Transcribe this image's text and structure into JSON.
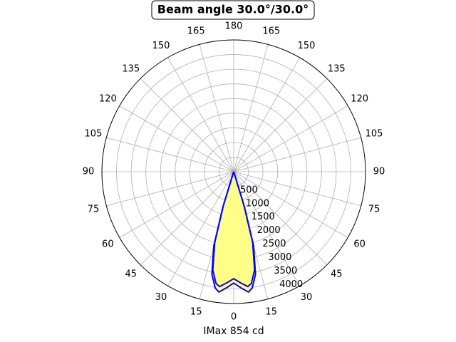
{
  "chart_data": {
    "type": "polar",
    "title": "Beam angle 30.0°/30.0°",
    "xlabel": "IMax 854 cd",
    "rlim": [
      0,
      4500
    ],
    "rticks": [
      500,
      1000,
      1500,
      2000,
      2500,
      3000,
      3500,
      4000
    ],
    "thetaticks": [
      0,
      15,
      30,
      45,
      60,
      75,
      90,
      105,
      120,
      135,
      150,
      165,
      180,
      {
        "value": -15,
        "label": "15"
      },
      {
        "value": -30,
        "label": "30"
      },
      {
        "value": -45,
        "label": "45"
      },
      {
        "value": -60,
        "label": "60"
      },
      {
        "value": -75,
        "label": "75"
      },
      {
        "value": -90,
        "label": "90"
      },
      {
        "value": -105,
        "label": "105"
      },
      {
        "value": -120,
        "label": "120"
      },
      {
        "value": -135,
        "label": "135"
      },
      {
        "value": -150,
        "label": "150"
      },
      {
        "value": -165,
        "label": "165"
      }
    ],
    "grid": true,
    "fill_color": "#ffff88",
    "series": [
      {
        "color": "#0000ff",
        "theta": [
          -20,
          -17,
          -15,
          -12,
          -9,
          -7,
          -3.5,
          0,
          3.5,
          7,
          9,
          12,
          15,
          17,
          20
        ],
        "values": [
          0,
          1250,
          2620,
          3580,
          4020,
          4140,
          3970,
          3800,
          3970,
          4140,
          4020,
          3580,
          2620,
          1250,
          0
        ]
      },
      {
        "color": "#0000ff",
        "theta": [
          -20,
          -17,
          -15,
          -12,
          -9,
          -7,
          -3.5,
          0,
          3.5,
          7,
          9,
          12,
          15,
          17,
          20
        ],
        "values": [
          0,
          1200,
          2500,
          3430,
          3860,
          3950,
          3800,
          3650,
          3800,
          3950,
          3860,
          3430,
          2500,
          1200,
          0
        ]
      }
    ]
  }
}
